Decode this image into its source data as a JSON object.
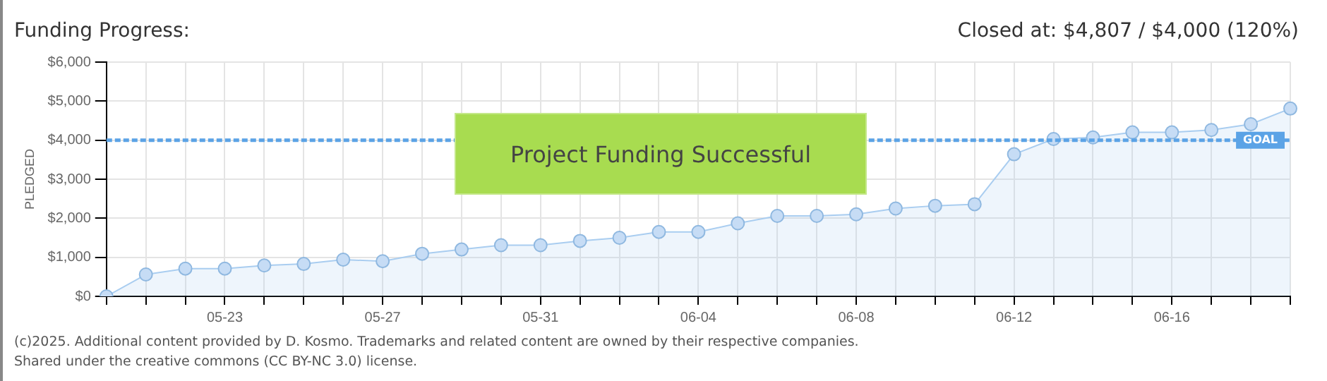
{
  "chart_data": {
    "type": "area",
    "title": "Funding Progress:",
    "ylabel": "PLEDGED",
    "annotations": [
      "Closed at:  $4,807 /  $4,000 (120%)",
      "Project Funding Successful",
      "(c)2025. Additional content provided by D. Kosmo. Trademarks and related content are owned by their respective companies.",
      "Shared under the creative commons (CC BY-NC 3.0) license."
    ],
    "categories": [
      null,
      null,
      null,
      "05-23",
      null,
      null,
      null,
      "05-27",
      null,
      null,
      null,
      "05-31",
      null,
      null,
      null,
      "06-04",
      null,
      null,
      null,
      "06-08",
      null,
      null,
      null,
      "06-12",
      null,
      null,
      null,
      "06-16",
      null,
      null,
      null
    ],
    "series": [
      {
        "color": "#a9cdf0",
        "values": [
          0,
          560,
          710,
          710,
          790,
          830,
          940,
          900,
          1090,
          1200,
          1310,
          1310,
          1420,
          1500,
          1650,
          1650,
          1870,
          2060,
          2060,
          2100,
          2250,
          2320,
          2360,
          3640,
          4030,
          4070,
          4200,
          4200,
          4260,
          4410,
          4810
        ]
      }
    ],
    "ylim": [
      0,
      6000
    ],
    "yticks": [
      {
        "value": 0,
        "label": "$0"
      },
      {
        "value": 1000,
        "label": "$1,000"
      },
      {
        "value": 2000,
        "label": "$2,000"
      },
      {
        "value": 3000,
        "label": "$3,000"
      },
      {
        "value": 4000,
        "label": "$4,000"
      },
      {
        "value": 5000,
        "label": "$5,000"
      },
      {
        "value": 6000,
        "label": "$6,000"
      }
    ],
    "ref_lines": [
      {
        "axis": "y",
        "value": 4000,
        "label": "GOAL",
        "color": "#5ba3e6",
        "line_style": "dashed"
      }
    ],
    "grid": true,
    "legend": false,
    "marker": "circle"
  }
}
